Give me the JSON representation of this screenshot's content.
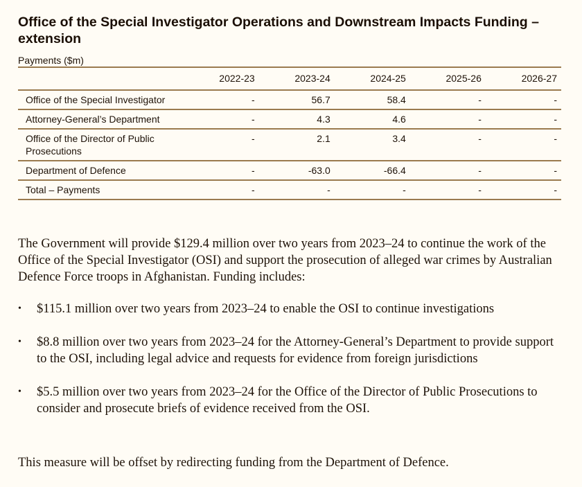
{
  "document": {
    "title": "Office of the Special Investigator Operations and Downstream Impacts Funding – extension",
    "table_caption": "Payments ($m)",
    "table": {
      "columns": [
        "",
        "2022-23",
        "2023-24",
        "2024-25",
        "2025-26",
        "2026-27"
      ],
      "rows": [
        {
          "label": "Office of the Special Investigator",
          "values": [
            "-",
            "56.7",
            "58.4",
            "-",
            "-"
          ]
        },
        {
          "label": "Attorney-General’s Department",
          "values": [
            "-",
            "4.3",
            "4.6",
            "-",
            "-"
          ]
        },
        {
          "label": "Office of the Director of Public Prosecutions",
          "values": [
            "-",
            "2.1",
            "3.4",
            "-",
            "-"
          ]
        },
        {
          "label": "Department of Defence",
          "values": [
            "-",
            "-63.0",
            "-66.4",
            "-",
            "-"
          ]
        },
        {
          "label": "Total – Payments",
          "values": [
            "-",
            "-",
            "-",
            "-",
            "-"
          ]
        }
      ]
    },
    "intro_paragraph": "The Government will provide $129.4 million over two years from 2023–24 to continue the work of the Office of the Special Investigator (OSI) and support the prosecution of alleged war crimes by Australian Defence Force troops in Afghanistan. Funding includes:",
    "bullet_glyph": "•",
    "bullets": [
      "$115.1 million over two years from 2023–24 to enable the OSI to continue investigations",
      "$8.8 million over two years from 2023–24 for the Attorney-General’s Department to provide support to the OSI, including legal advice and requests for evidence from foreign jurisdictions",
      "$5.5 million over two years from 2023–24 for the Office of the Director of Public Prosecutions to consider and prosecute briefs of evidence received from the OSI."
    ],
    "closing_paragraph": "This measure will be offset by redirecting funding from the Department of Defence."
  },
  "colors": {
    "background": "#fffcf5",
    "text": "#1e1208",
    "rule": "#9a7a4e"
  }
}
